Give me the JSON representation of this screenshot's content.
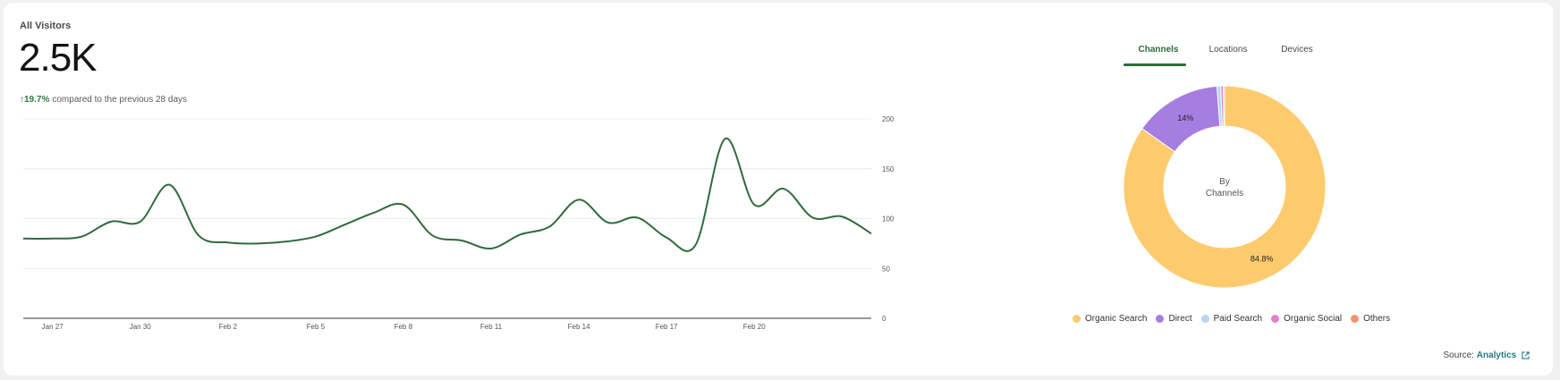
{
  "header": {
    "title": "All Visitors",
    "total": "2.5K",
    "delta_arrow": "↑",
    "delta_pct": "19.7%",
    "delta_text": "compared to the previous 28 days"
  },
  "tabs": [
    {
      "label": "Channels",
      "active": true
    },
    {
      "label": "Locations",
      "active": false
    },
    {
      "label": "Devices",
      "active": false
    }
  ],
  "donut": {
    "center_line1": "By",
    "center_line2": "Channels"
  },
  "legend": [
    {
      "label": "Organic Search",
      "color": "#fdcb6e"
    },
    {
      "label": "Direct",
      "color": "#a57ee0"
    },
    {
      "label": "Paid Search",
      "color": "#b9d4f5"
    },
    {
      "label": "Organic Social",
      "color": "#e27fd0"
    },
    {
      "label": "Others",
      "color": "#f2956f"
    }
  ],
  "source": {
    "label": "Source:",
    "link": "Analytics",
    "icon": "external-link-icon"
  },
  "colors": {
    "line": "#2f6b3c",
    "accent": "#2e6b3a",
    "link": "#227a87"
  },
  "chart_data": [
    {
      "type": "line",
      "x_ticks": [
        "Jan 27",
        "Jan 30",
        "Feb 2",
        "Feb 5",
        "Feb 8",
        "Feb 11",
        "Feb 14",
        "Feb 17",
        "Feb 20"
      ],
      "y_ticks": [
        0,
        50,
        100,
        150,
        200
      ],
      "ylim": [
        0,
        200
      ],
      "grid": true,
      "y_axis_side": "right",
      "series": [
        {
          "values": [
            80,
            80,
            82,
            97,
            97,
            134,
            83,
            76,
            75,
            77,
            82,
            94,
            106,
            114,
            83,
            78,
            70,
            84,
            92,
            119,
            96,
            101,
            81,
            74,
            180,
            114,
            130,
            101,
            102,
            85
          ]
        }
      ]
    },
    {
      "type": "pie",
      "labels": [
        "Organic Search",
        "Direct",
        "Paid Search",
        "Organic Social",
        "Others"
      ],
      "values": [
        84.8,
        14,
        0.6,
        0.4,
        0.2
      ],
      "data_labels": [
        "84.8%",
        "14%",
        "",
        "",
        ""
      ]
    }
  ]
}
